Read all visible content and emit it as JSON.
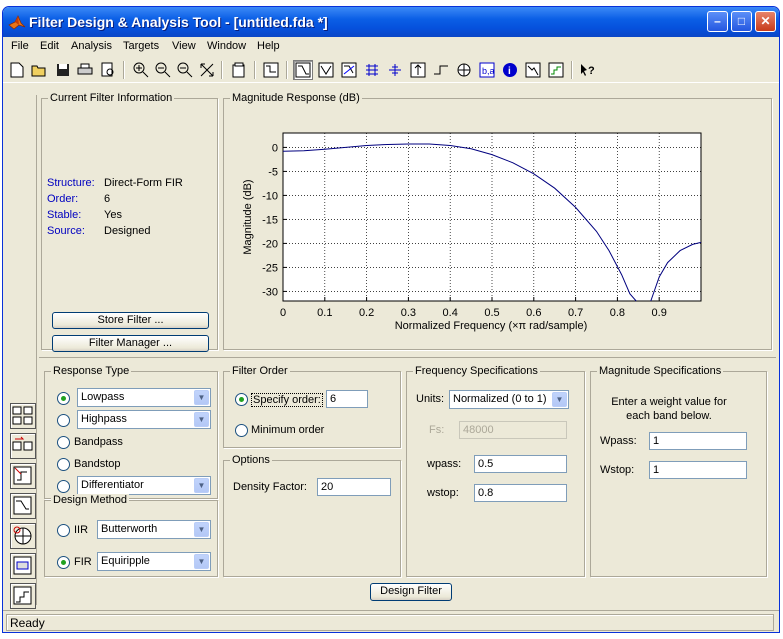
{
  "window": {
    "title": "Filter Design & Analysis Tool -  [untitled.fda *]"
  },
  "menu": [
    "File",
    "Edit",
    "Analysis",
    "Targets",
    "View",
    "Window",
    "Help"
  ],
  "current_filter": {
    "title": "Current Filter Information",
    "rows": [
      {
        "label": "Structure:",
        "value": "Direct-Form FIR"
      },
      {
        "label": "Order:",
        "value": "6"
      },
      {
        "label": "Stable:",
        "value": "Yes"
      },
      {
        "label": "Source:",
        "value": "Designed"
      }
    ],
    "store_button": "Store Filter ...",
    "manager_button": "Filter Manager ..."
  },
  "plot": {
    "panel_title": "Magnitude Response (dB)",
    "chart_data": {
      "type": "line",
      "xlabel": "Normalized Frequency (×π rad/sample)",
      "ylabel": "Magnitude (dB)",
      "xlim": [
        0,
        1
      ],
      "ylim": [
        -32,
        3
      ],
      "grid": true,
      "xticks": [
        "0",
        "0.1",
        "0.2",
        "0.3",
        "0.4",
        "0.5",
        "0.6",
        "0.7",
        "0.8",
        "0.9"
      ],
      "yticks": [
        "0",
        "-5",
        "-10",
        "-15",
        "-20",
        "-25",
        "-30"
      ],
      "series": [
        {
          "color": "#00007f",
          "x": [
            0,
            0.05,
            0.1,
            0.15,
            0.2,
            0.25,
            0.3,
            0.35,
            0.4,
            0.45,
            0.5,
            0.55,
            0.6,
            0.65,
            0.7,
            0.75,
            0.78,
            0.81,
            0.83,
            0.845,
            null,
            0.88,
            0.9,
            0.92,
            0.95,
            0.98,
            1.0
          ],
          "y": [
            -0.8,
            -0.7,
            -0.4,
            0.0,
            0.4,
            0.6,
            0.7,
            0.7,
            0.4,
            -0.3,
            -1.5,
            -3.2,
            -5.5,
            -8.5,
            -12.5,
            -17.5,
            -21.5,
            -26.5,
            -30.5,
            -32,
            null,
            -32,
            -27,
            -24,
            -21.5,
            -20.2,
            -19.8
          ]
        }
      ]
    }
  },
  "response_type": {
    "title": "Response Type",
    "options": [
      {
        "label": "Lowpass",
        "selected": true,
        "dropdown": true
      },
      {
        "label": "Highpass",
        "selected": false,
        "dropdown": true
      },
      {
        "label": "Bandpass",
        "selected": false,
        "dropdown": false
      },
      {
        "label": "Bandstop",
        "selected": false,
        "dropdown": false
      },
      {
        "label": "Differentiator",
        "selected": false,
        "dropdown": true
      }
    ]
  },
  "design_method": {
    "title": "Design Method",
    "iir_label": "IIR",
    "iir_value": "Butterworth",
    "fir_label": "FIR",
    "fir_value": "Equiripple"
  },
  "filter_order": {
    "title": "Filter Order",
    "specify_label": "Specify order:",
    "specify_value": "6",
    "minimum_label": "Minimum order"
  },
  "options": {
    "title": "Options",
    "density_label": "Density Factor:",
    "density_value": "20"
  },
  "freq_specs": {
    "title": "Frequency Specifications",
    "units_label": "Units:",
    "units_value": "Normalized (0 to 1)",
    "fs_label": "Fs:",
    "fs_value": "48000",
    "wpass_label": "wpass:",
    "wpass_value": "0.5",
    "wstop_label": "wstop:",
    "wstop_value": "0.8"
  },
  "mag_specs": {
    "title": "Magnitude Specifications",
    "note": "Enter a weight value for each band below.",
    "wpass_label": "Wpass:",
    "wpass_value": "1",
    "wstop_label": "Wstop:",
    "wstop_value": "1"
  },
  "design_button": "Design Filter",
  "status": "Ready",
  "colors": {
    "titlebar": "#0651dd",
    "plot_line": "#00007f",
    "radio_dot": "#21a121"
  }
}
